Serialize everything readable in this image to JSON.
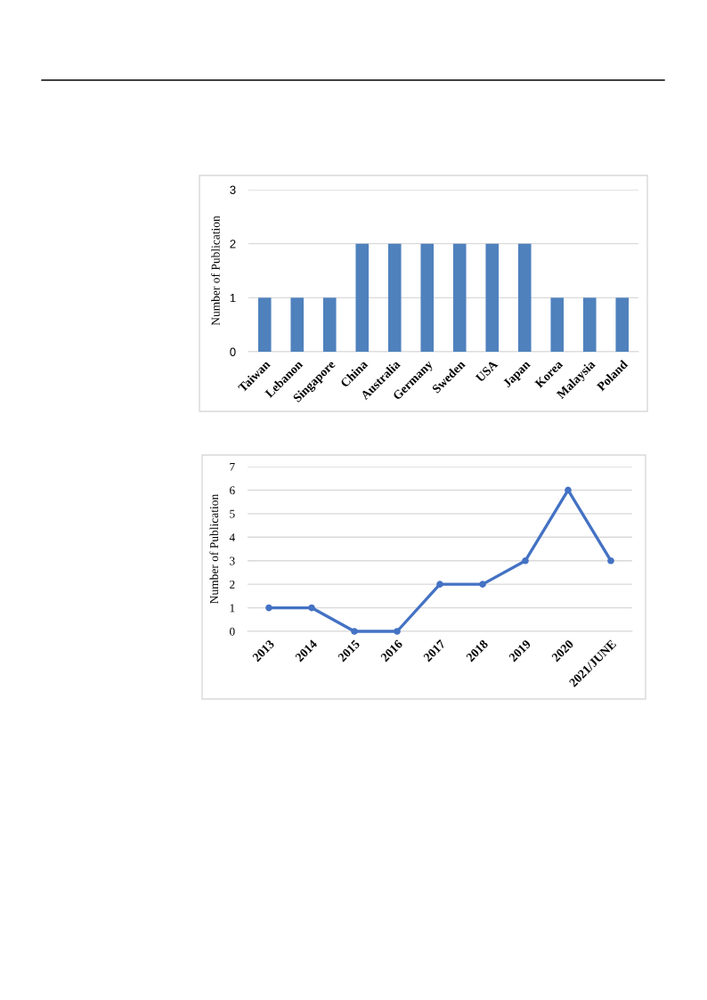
{
  "chart_data": [
    {
      "type": "bar",
      "categories": [
        "Taiwan",
        "Lebanon",
        "Singapore",
        "China",
        "Australia",
        "Germany",
        "Sweden",
        "USA",
        "Japan",
        "Korea",
        "Malaysia",
        "Poland"
      ],
      "values": [
        1,
        1,
        1,
        2,
        2,
        2,
        2,
        2,
        2,
        1,
        1,
        1
      ],
      "color": "#4f81bd",
      "ylabel": "Number of Publication",
      "ylim": [
        0,
        3
      ],
      "yticks": [
        0,
        1,
        2,
        3
      ],
      "grid": "y"
    },
    {
      "type": "line",
      "categories": [
        "2013",
        "2014",
        "2015",
        "2016",
        "2017",
        "2018",
        "2019",
        "2020",
        "2021/JUNE"
      ],
      "values": [
        1,
        1,
        0,
        0,
        2,
        2,
        3,
        6,
        3
      ],
      "color": "#4472c4",
      "marker": "circle",
      "line_style": "solid",
      "ylabel": "Number of Publication",
      "ylim": [
        0,
        7
      ],
      "yticks": [
        0,
        1,
        2,
        3,
        4,
        5,
        6,
        7
      ],
      "grid": "y"
    }
  ]
}
